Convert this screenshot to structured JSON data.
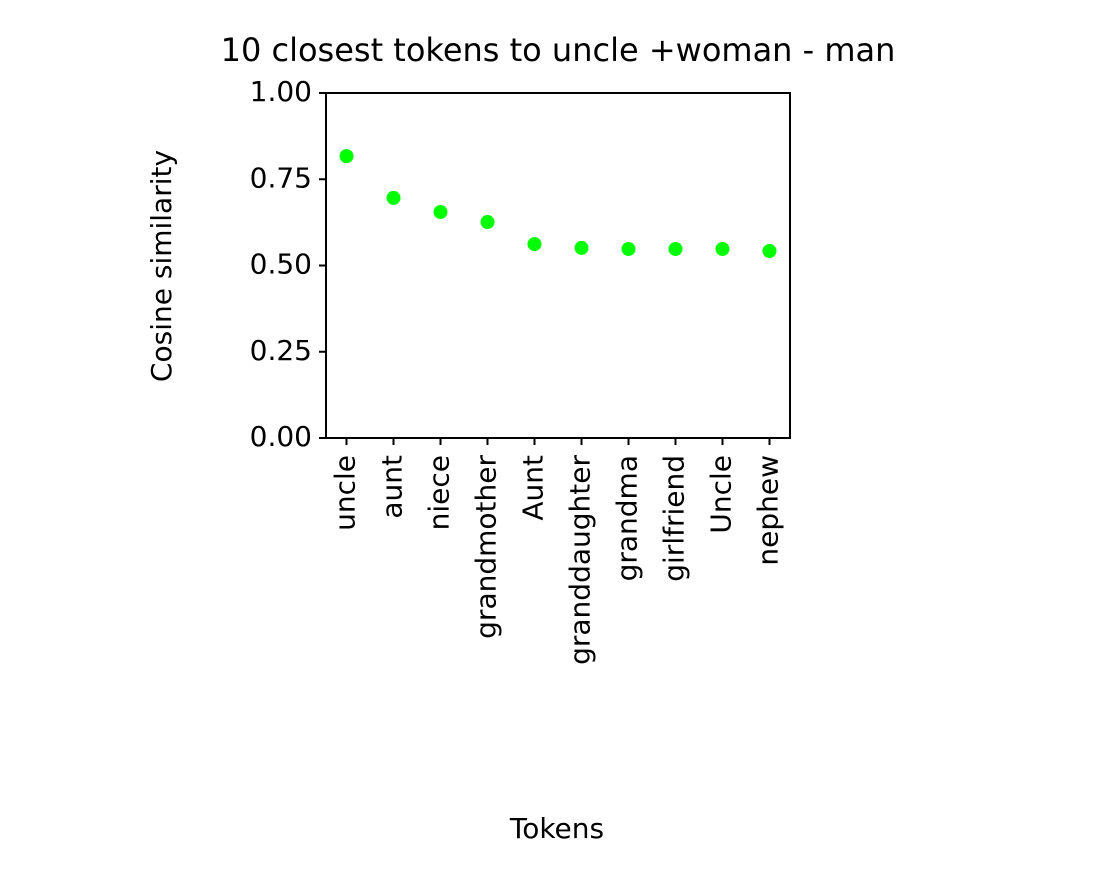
{
  "chart_data": {
    "type": "scatter",
    "title": "10 closest tokens to uncle +woman - man",
    "x_label": "Tokens",
    "y_label": "Cosine similarity",
    "categories": [
      "uncle",
      "aunt",
      "niece",
      "grandmother",
      "Aunt",
      "granddaughter",
      "grandma",
      "girlfriend",
      "Uncle",
      "nephew"
    ],
    "values": [
      0.817,
      0.696,
      0.655,
      0.626,
      0.562,
      0.551,
      0.548,
      0.548,
      0.548,
      0.542
    ],
    "color": "#00ff00",
    "ylim": [
      0,
      1
    ],
    "yticks": [
      {
        "value": 0,
        "label": "0.00"
      },
      {
        "value": 0.25,
        "label": "0.25"
      },
      {
        "value": 0.5,
        "label": "0.50"
      },
      {
        "value": 0.75,
        "label": "0.75"
      },
      {
        "value": 1,
        "label": "1.00"
      }
    ],
    "grid": false
  }
}
